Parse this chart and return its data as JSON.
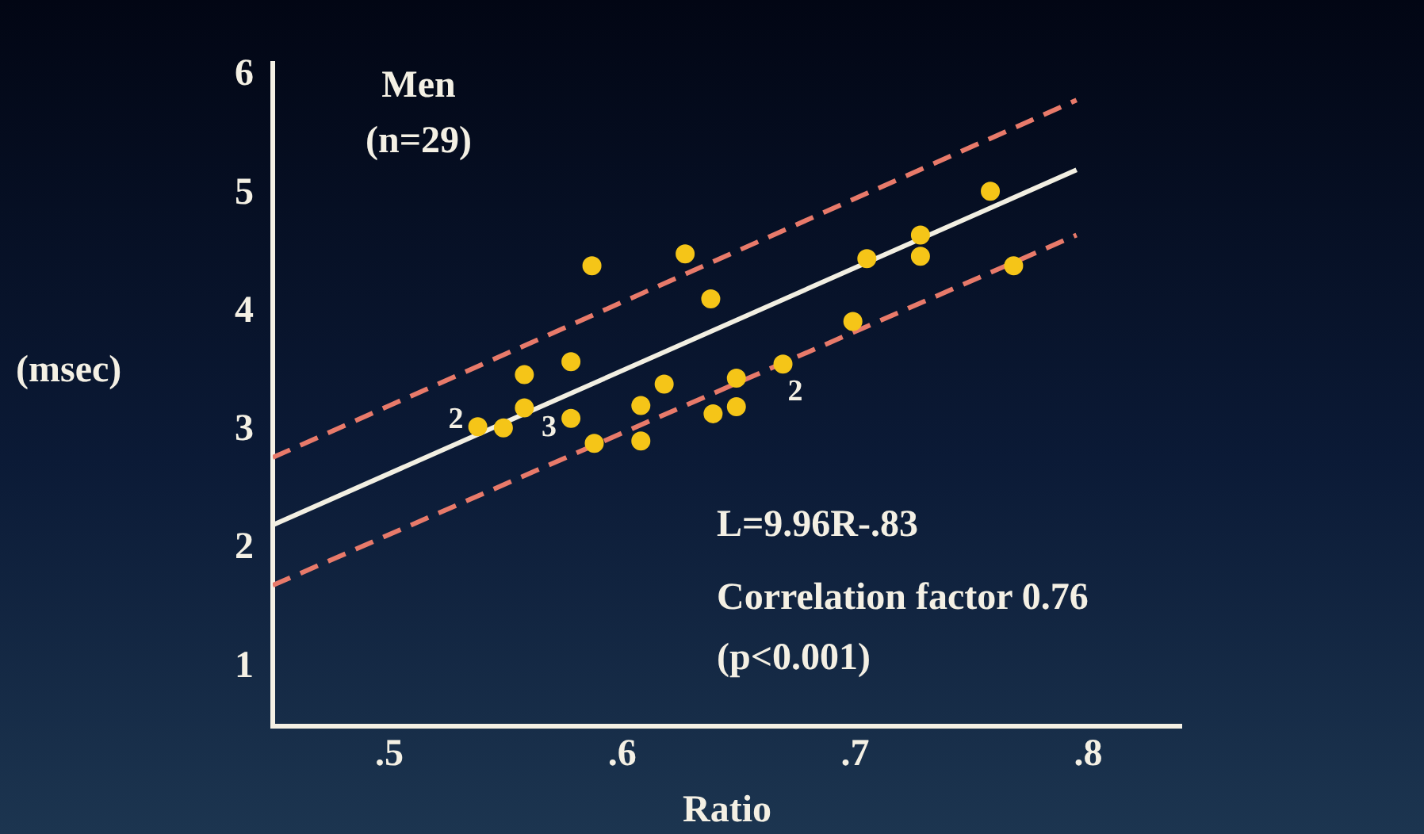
{
  "chart_data": {
    "type": "scatter",
    "title": "Men",
    "subtitle": "(n=29)",
    "xlabel": "Ratio",
    "ylabel": "(msec)",
    "annotations": [
      {
        "text": "2",
        "x": 0.538,
        "y": 3.03
      },
      {
        "text": "3",
        "x": 0.578,
        "y": 3.1
      },
      {
        "text": "2",
        "x": 0.669,
        "y": 3.56
      },
      "L=9.96R-.83",
      "Correlation factor 0.76",
      "(p<0.001)"
    ],
    "xlim": [
      0.45,
      0.84
    ],
    "ylim": [
      0.5,
      6.1
    ],
    "xticks": [
      {
        "value": 0.5,
        "label": ".5"
      },
      {
        "value": 0.6,
        "label": ".6"
      },
      {
        "value": 0.7,
        "label": ".7"
      },
      {
        "value": 0.8,
        "label": ".8"
      }
    ],
    "yticks": [
      1,
      2,
      3,
      4,
      5,
      6
    ],
    "grid": false,
    "legend": false,
    "marker": "circle",
    "series": [
      {
        "type": "scatter",
        "color": "#f5c518",
        "x": [
          0.538,
          0.549,
          0.558,
          0.558,
          0.578,
          0.578,
          0.587,
          0.588,
          0.608,
          0.608,
          0.618,
          0.627,
          0.638,
          0.639,
          0.649,
          0.649,
          0.669,
          0.699,
          0.705,
          0.728,
          0.728,
          0.758,
          0.768
        ],
        "values": [
          3.03,
          3.02,
          3.47,
          3.19,
          3.58,
          3.1,
          4.39,
          2.89,
          3.21,
          2.91,
          3.39,
          4.49,
          4.11,
          3.14,
          3.44,
          3.2,
          3.56,
          3.92,
          4.45,
          4.65,
          4.47,
          5.02,
          4.39
        ]
      },
      {
        "type": "line",
        "color": "#f2efe2",
        "x": [
          0.45,
          0.795
        ],
        "values": [
          2.2,
          5.2
        ],
        "line_style": "solid",
        "marker": "none"
      },
      {
        "type": "line",
        "color": "#e87a6a",
        "x": [
          0.45,
          0.795
        ],
        "values": [
          2.77,
          5.79
        ],
        "line_style": "dashed",
        "marker": "none"
      },
      {
        "type": "line",
        "color": "#e87a6a",
        "x": [
          0.45,
          0.795
        ],
        "values": [
          1.69,
          4.65
        ],
        "line_style": "dashed",
        "marker": "none"
      }
    ]
  }
}
